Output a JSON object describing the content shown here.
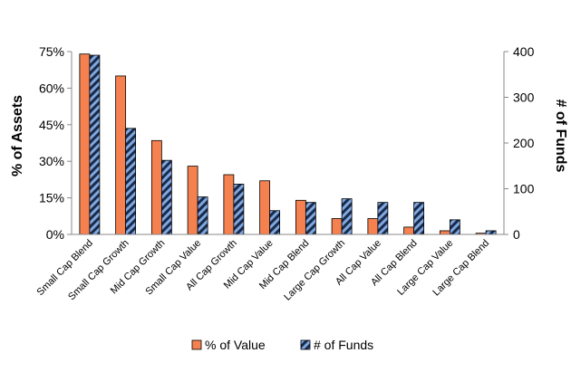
{
  "chart_data": {
    "type": "bar",
    "categories": [
      "Small Cap Blend",
      "Small Cap Growth",
      "Mid Cap Growth",
      "Small Cap Value",
      "All Cap Growth",
      "Mid Cap Value",
      "Mid Cap Blend",
      "Large Cap Growth",
      "All Cap Value",
      "All Cap Blend",
      "Large Cap Value",
      "Large Cap Blend"
    ],
    "series": [
      {
        "name": "% of Value",
        "axis": "left",
        "color": "#F4814F",
        "values": [
          74,
          65,
          38.5,
          28,
          24.5,
          22,
          14,
          6.5,
          6.5,
          3,
          1.5,
          0.5
        ]
      },
      {
        "name": "# of Funds",
        "axis": "right",
        "color": "#7FA8E0",
        "pattern": "diagonal-stripes",
        "values": [
          392,
          232,
          162,
          82,
          110,
          52,
          70,
          78,
          70,
          70,
          32,
          8
        ]
      }
    ],
    "ylabel": "% of Assets",
    "ylabel_right": "# of Funds",
    "ylim": [
      0,
      75
    ],
    "ylim_right": [
      0,
      400
    ],
    "yticks": [
      "0%",
      "15%",
      "30%",
      "45%",
      "60%",
      "75%"
    ],
    "yticks_right": [
      "0",
      "100",
      "200",
      "300",
      "400"
    ],
    "grid": false,
    "legend": "bottom"
  }
}
